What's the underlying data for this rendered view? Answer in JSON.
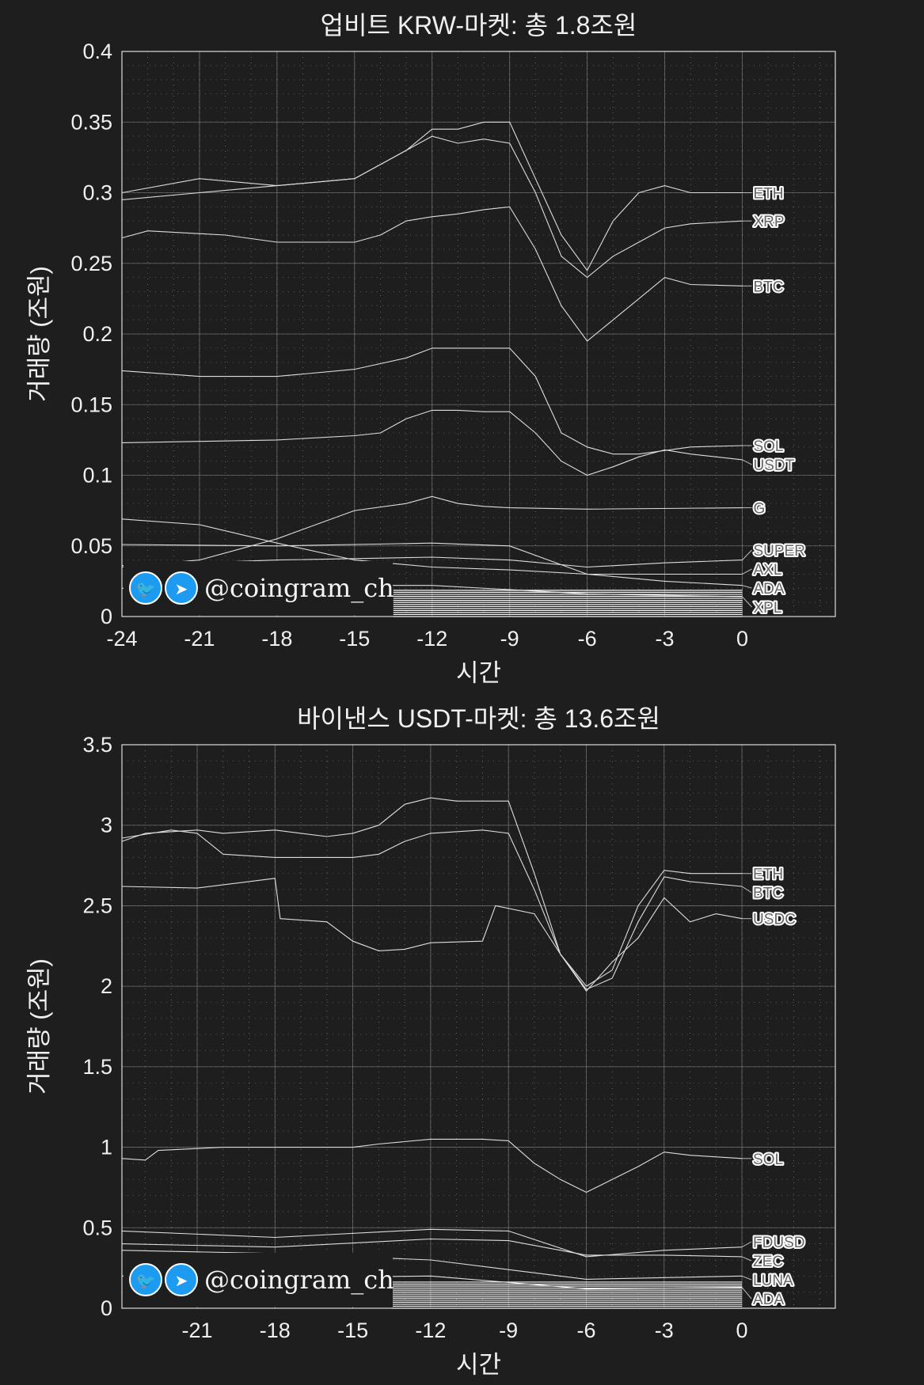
{
  "chart_data": [
    {
      "type": "line",
      "title": "업비트 KRW-마켓: 총 1.8조원",
      "xlabel": "시간",
      "ylabel": "거래량 (조원)",
      "xlim": [
        -24,
        3.6
      ],
      "ylim": [
        0,
        0.4
      ],
      "xticks": [
        -24,
        -21,
        -18,
        -15,
        -12,
        -9,
        -6,
        -3,
        0
      ],
      "yticks": [
        0,
        0.05,
        0.1,
        0.15,
        0.2,
        0.25,
        0.3,
        0.35,
        0.4
      ],
      "ytick_labels": [
        "0",
        "0.05",
        "0.1",
        "0.15",
        "0.2",
        "0.25",
        "0.3",
        "0.35",
        "0.4"
      ],
      "grid": true,
      "line_color": "#dddddd",
      "series": [
        {
          "name": "ETH",
          "x": [
            -24,
            -21,
            -18,
            -15,
            -13,
            -12,
            -11,
            -10,
            -9,
            -8,
            -7,
            -6,
            -5,
            -4,
            -3,
            -2,
            0
          ],
          "y": [
            0.3,
            0.31,
            0.305,
            0.31,
            0.33,
            0.345,
            0.345,
            0.35,
            0.35,
            0.31,
            0.27,
            0.245,
            0.28,
            0.3,
            0.305,
            0.3,
            0.3
          ]
        },
        {
          "name": "XRP",
          "x": [
            -24,
            -21,
            -18,
            -15,
            -13,
            -12,
            -11,
            -10,
            -9,
            -8,
            -7,
            -6,
            -5,
            -4,
            -3,
            -2,
            0
          ],
          "y": [
            0.295,
            0.3,
            0.305,
            0.31,
            0.33,
            0.34,
            0.335,
            0.338,
            0.335,
            0.3,
            0.255,
            0.24,
            0.255,
            0.265,
            0.275,
            0.278,
            0.28
          ]
        },
        {
          "name": "BTC",
          "x": [
            -24,
            -23,
            -20,
            -18,
            -15,
            -14,
            -13,
            -12,
            -11,
            -10,
            -9,
            -8,
            -7,
            -6,
            -5,
            -4,
            -3,
            -2,
            0
          ],
          "y": [
            0.268,
            0.273,
            0.27,
            0.265,
            0.265,
            0.27,
            0.28,
            0.283,
            0.285,
            0.288,
            0.29,
            0.26,
            0.22,
            0.195,
            0.21,
            0.225,
            0.24,
            0.235,
            0.234
          ]
        },
        {
          "name": "SOL",
          "x": [
            -24,
            -21,
            -18,
            -15,
            -13,
            -12,
            -11,
            -10,
            -9,
            -8,
            -7,
            -6,
            -5,
            -4,
            -2,
            0
          ],
          "y": [
            0.174,
            0.17,
            0.17,
            0.175,
            0.183,
            0.19,
            0.19,
            0.19,
            0.19,
            0.17,
            0.13,
            0.12,
            0.115,
            0.115,
            0.12,
            0.121
          ]
        },
        {
          "name": "USDT",
          "x": [
            -24,
            -21,
            -18,
            -15,
            -14,
            -13,
            -12,
            -11,
            -10,
            -9,
            -8,
            -7,
            -6,
            -5,
            -4,
            -3,
            -2,
            0
          ],
          "y": [
            0.123,
            0.124,
            0.125,
            0.128,
            0.13,
            0.14,
            0.146,
            0.146,
            0.145,
            0.145,
            0.13,
            0.11,
            0.1,
            0.106,
            0.113,
            0.118,
            0.115,
            0.111
          ]
        },
        {
          "name": "G",
          "x": [
            -24,
            -21,
            -18,
            -15,
            -13,
            -12,
            -11,
            -10,
            -9,
            -6,
            0
          ],
          "y": [
            0.035,
            0.04,
            0.055,
            0.075,
            0.08,
            0.085,
            0.08,
            0.078,
            0.077,
            0.076,
            0.077
          ]
        },
        {
          "name": "SUPER",
          "x": [
            -24,
            -18,
            -12,
            -9,
            -6,
            -3,
            0
          ],
          "y": [
            0.036,
            0.04,
            0.042,
            0.04,
            0.035,
            0.038,
            0.04
          ]
        },
        {
          "name": "AXL",
          "x": [
            -24,
            -21,
            -18,
            -15,
            -12,
            -9,
            -6,
            -3,
            0
          ],
          "y": [
            0.069,
            0.065,
            0.052,
            0.04,
            0.035,
            0.033,
            0.03,
            0.03,
            0.03
          ]
        },
        {
          "name": "ADA",
          "x": [
            -24,
            -18,
            -12,
            -9,
            -6,
            -3,
            0
          ],
          "y": [
            0.051,
            0.05,
            0.052,
            0.05,
            0.03,
            0.025,
            0.022
          ]
        },
        {
          "name": "XPL",
          "x": [
            -24,
            -18,
            -12,
            -6,
            0
          ],
          "y": [
            0.02,
            0.022,
            0.022,
            0.016,
            0.014
          ]
        }
      ]
    },
    {
      "type": "line",
      "title": "바이낸스 USDT-마켓: 총 13.6조원",
      "xlabel": "시간",
      "ylabel": "거래량 (조원)",
      "xlim": [
        -23.9,
        3.6
      ],
      "ylim": [
        0,
        3.5
      ],
      "xticks": [
        -21,
        -18,
        -15,
        -12,
        -9,
        -6,
        -3,
        0
      ],
      "yticks": [
        0,
        0.5,
        1,
        1.5,
        2,
        2.5,
        3,
        3.5
      ],
      "ytick_labels": [
        "0",
        "0.5",
        "1",
        "1.5",
        "2",
        "2.5",
        "3",
        "3.5"
      ],
      "grid": true,
      "line_color": "#dddddd",
      "series": [
        {
          "name": "ETH",
          "x": [
            -24,
            -23,
            -21,
            -20,
            -18,
            -16,
            -15,
            -14,
            -13,
            -12,
            -11,
            -10,
            -9,
            -8,
            -7,
            -6,
            -5,
            -4,
            -3,
            -2,
            0
          ],
          "y": [
            2.9,
            2.95,
            2.97,
            2.95,
            2.97,
            2.93,
            2.95,
            3.0,
            3.13,
            3.17,
            3.15,
            3.15,
            3.15,
            2.7,
            2.2,
            2.0,
            2.1,
            2.5,
            2.72,
            2.7,
            2.7
          ]
        },
        {
          "name": "BTC",
          "x": [
            -24,
            -22,
            -21,
            -20,
            -18,
            -15,
            -14,
            -13,
            -12,
            -10,
            -9,
            -8,
            -7,
            -6,
            -5,
            -4,
            -3,
            -2,
            0
          ],
          "y": [
            2.92,
            2.97,
            2.95,
            2.82,
            2.8,
            2.8,
            2.82,
            2.9,
            2.95,
            2.97,
            2.95,
            2.6,
            2.2,
            1.98,
            2.05,
            2.4,
            2.68,
            2.65,
            2.62
          ]
        },
        {
          "name": "USDC",
          "x": [
            -24,
            -21,
            -19,
            -18,
            -17.8,
            -16,
            -15,
            -14,
            -13,
            -12,
            -10,
            -9.5,
            -8,
            -7,
            -6,
            -5,
            -4,
            -3,
            -2,
            -1,
            0
          ],
          "y": [
            2.62,
            2.61,
            2.65,
            2.67,
            2.42,
            2.4,
            2.28,
            2.22,
            2.23,
            2.27,
            2.28,
            2.5,
            2.45,
            2.2,
            1.97,
            2.15,
            2.3,
            2.55,
            2.4,
            2.45,
            2.42
          ]
        },
        {
          "name": "SOL",
          "x": [
            -24,
            -23,
            -22.5,
            -20,
            -18,
            -15,
            -14,
            -12,
            -10,
            -9,
            -8,
            -7,
            -6,
            -5,
            -4,
            -3,
            -2,
            0
          ],
          "y": [
            0.93,
            0.92,
            0.98,
            1.0,
            1.0,
            1.0,
            1.02,
            1.05,
            1.05,
            1.04,
            0.9,
            0.8,
            0.72,
            0.8,
            0.88,
            0.97,
            0.95,
            0.93
          ]
        },
        {
          "name": "FDUSD",
          "x": [
            -24,
            -18,
            -12,
            -9,
            -6,
            -3,
            0
          ],
          "y": [
            0.48,
            0.44,
            0.49,
            0.48,
            0.32,
            0.36,
            0.38
          ]
        },
        {
          "name": "ZEC",
          "x": [
            -24,
            -18,
            -12,
            -9,
            -6,
            -3,
            0
          ],
          "y": [
            0.4,
            0.38,
            0.43,
            0.42,
            0.33,
            0.33,
            0.32
          ]
        },
        {
          "name": "LUNA",
          "x": [
            -24,
            -18,
            -12,
            -6,
            0
          ],
          "y": [
            0.36,
            0.34,
            0.3,
            0.18,
            0.2
          ]
        },
        {
          "name": "ADA",
          "x": [
            -24,
            -18,
            -12,
            -6,
            0
          ],
          "y": [
            0.2,
            0.19,
            0.2,
            0.12,
            0.13
          ]
        }
      ]
    }
  ],
  "watermark": {
    "handle": "@coingram_ch",
    "icons": [
      "twitter-icon",
      "telegram-icon"
    ],
    "icon_color": "#1d9bf0"
  },
  "colors": {
    "background": "#1e1e1e",
    "grid": "#8a8a8a",
    "text": "#f0f0f0"
  }
}
